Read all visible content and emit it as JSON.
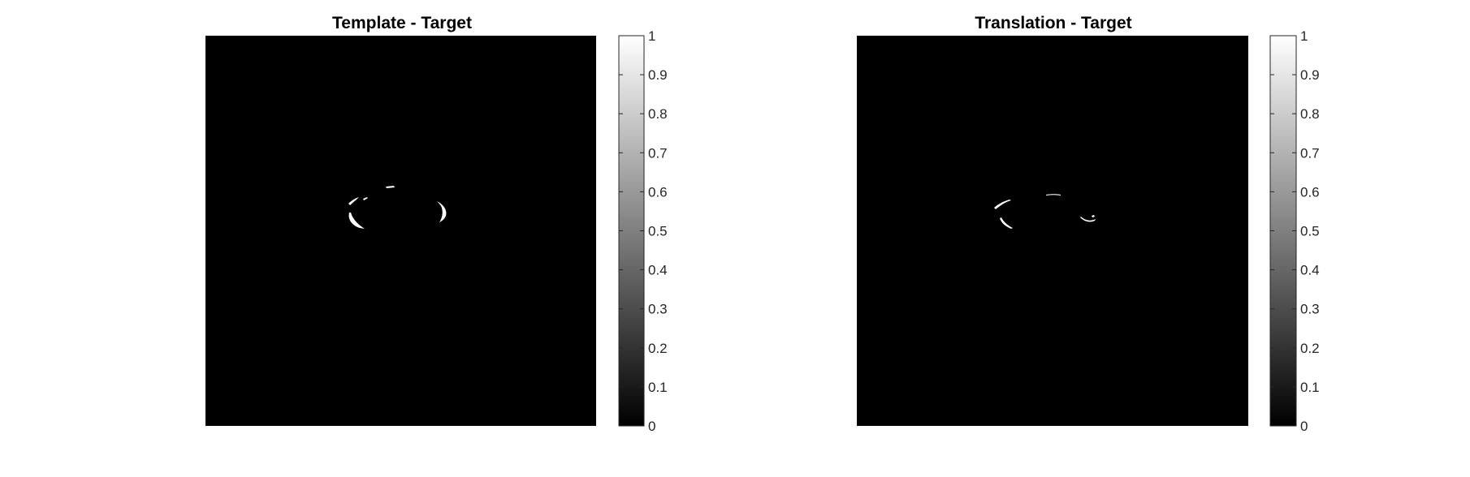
{
  "chart_data": [
    {
      "type": "heatmap",
      "title": "Template - Target",
      "colormap": "gray",
      "axes_visible": false,
      "colorbar": {
        "clim": [
          0,
          1
        ],
        "tick_values": [
          0,
          0.1,
          0.2,
          0.3,
          0.4,
          0.5,
          0.6,
          0.7,
          0.8,
          0.9,
          1
        ],
        "tick_labels": [
          "0",
          "0.1",
          "0.2",
          "0.3",
          "0.4",
          "0.5",
          "0.6",
          "0.7",
          "0.8",
          "0.9",
          "1"
        ],
        "location": "right"
      },
      "background_value": 0,
      "highlight_value": 1
    },
    {
      "type": "heatmap",
      "title": "Translation - Target",
      "colormap": "gray",
      "axes_visible": false,
      "colorbar": {
        "clim": [
          0,
          1
        ],
        "tick_values": [
          0,
          0.1,
          0.2,
          0.3,
          0.4,
          0.5,
          0.6,
          0.7,
          0.8,
          0.9,
          1
        ],
        "tick_labels": [
          "0",
          "0.1",
          "0.2",
          "0.3",
          "0.4",
          "0.5",
          "0.6",
          "0.7",
          "0.8",
          "0.9",
          "1"
        ],
        "location": "right"
      },
      "background_value": 0,
      "highlight_value": 1
    }
  ]
}
